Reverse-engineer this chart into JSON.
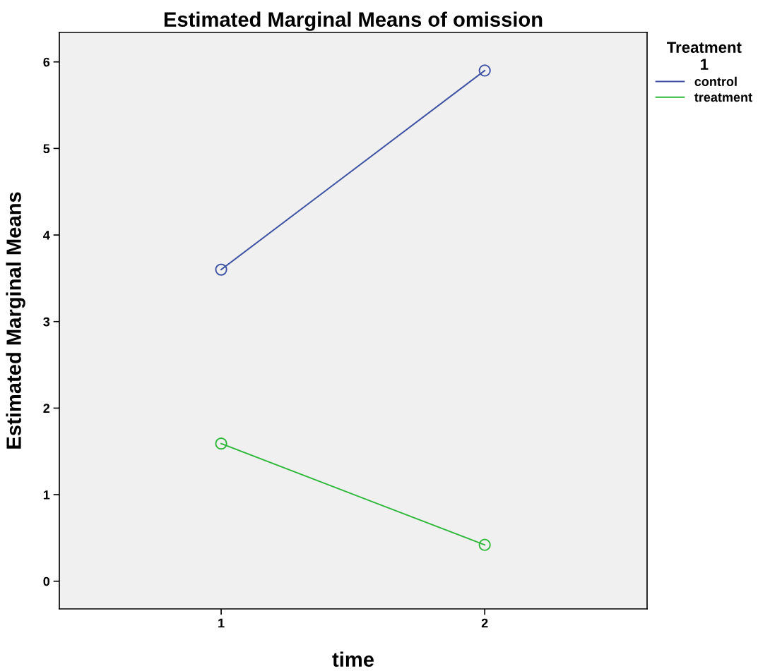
{
  "chart_data": {
    "type": "line",
    "title": "Estimated Marginal Means of omission",
    "xlabel": "time",
    "ylabel": "Estimated Marginal Means",
    "legend_title": "Treatment 1",
    "categories": [
      "1",
      "2"
    ],
    "series": [
      {
        "name": "control",
        "color": "#3e53a4",
        "values": [
          3.6,
          5.9
        ]
      },
      {
        "name": "treatment",
        "color": "#2fb93b",
        "values": [
          1.59,
          0.42
        ]
      }
    ],
    "ylim": [
      -0.32,
      6.34
    ],
    "yticks": [
      0,
      1,
      2,
      3,
      4,
      5,
      6
    ],
    "grid": false,
    "legend": "right",
    "marker": "circle",
    "line_style": "solid"
  }
}
